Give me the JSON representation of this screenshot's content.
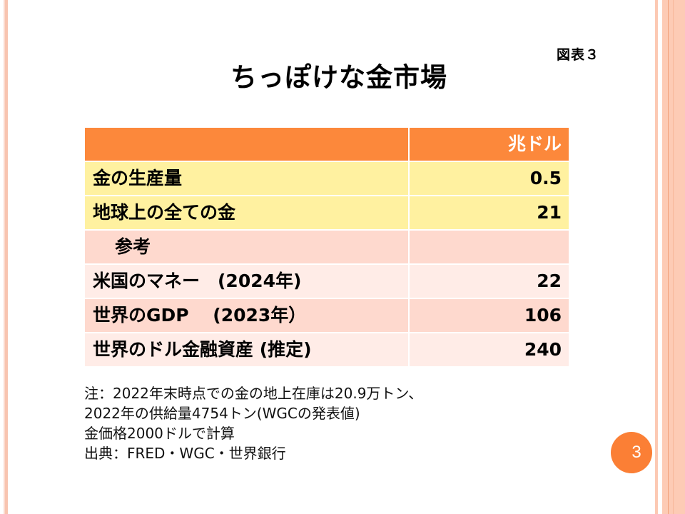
{
  "slide": {
    "figure_label": "図表３",
    "title": "ちっぽけな金市場",
    "page_number": "3"
  },
  "table": {
    "header": {
      "label": "",
      "unit": "兆ドル"
    },
    "rows": [
      {
        "label": "金の生産量",
        "value": "0.5",
        "style": "yellow"
      },
      {
        "label": "地球上の全ての金",
        "value": "21",
        "style": "yellow"
      },
      {
        "label": "参考",
        "value": "",
        "style": "pink-dark"
      },
      {
        "label": "米国のマネー　(2024年)",
        "value": "22",
        "style": "pink-light"
      },
      {
        "label": "世界のGDP　 (2023年）",
        "value": "106",
        "style": "pink-dark"
      },
      {
        "label": "世界のドル金融資産 (推定)",
        "value": "240",
        "style": "pink-light"
      }
    ]
  },
  "notes": [
    "注：2022年末時点での金の地上在庫は20.9万トン、",
    "2022年の供給量4754トン(WGCの発表値)",
    "金価格2000ドルで計算",
    "出典：FRED・WGC・世界銀行"
  ],
  "colors": {
    "header_orange": "#fc883b",
    "row_yellow": "#fff1a0",
    "row_pink_dark": "#fed9ce",
    "row_pink_light": "#ffece7",
    "badge_orange": "#fb7f35",
    "side_stripe": "#fdcbb5"
  }
}
